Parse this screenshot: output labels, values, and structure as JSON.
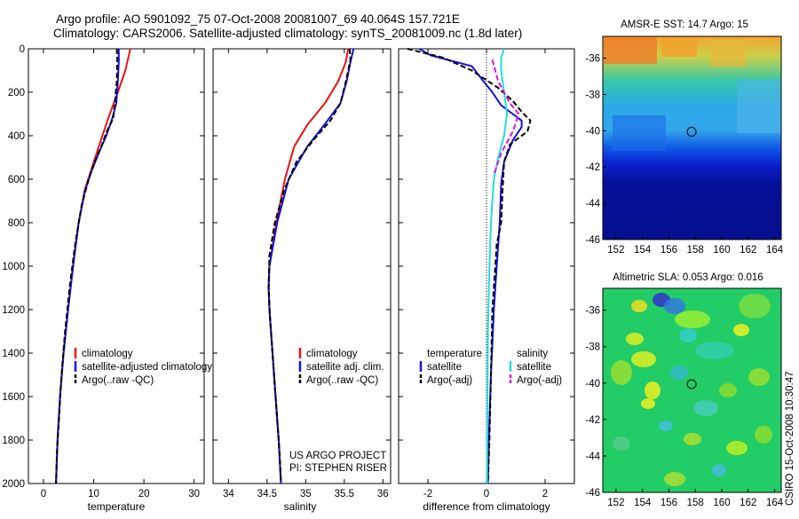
{
  "header": {
    "title_line1": "Argo profile: AO 5901092_75 07-Oct-2008 20081007_69 40.064S 157.721E",
    "title_line2": "Climatology: CARS2006. Satellite-adjusted climatology: synTS_20081009.nc (1.8d later)"
  },
  "colors": {
    "climatology": "#ee1111",
    "satellite": "#1111dd",
    "argo": "#000000",
    "satellite_salinity": "#22dddd",
    "argo_salinity": "#dd11dd"
  },
  "credits": {
    "line1": "US ARGO PROJECT",
    "line2": "PI: STEPHEN RISER"
  },
  "side_label": "CSIRO 15-Oct-2008 10:30:47",
  "chart_data": [
    {
      "id": "temperature",
      "type": "line",
      "xlabel": "temperature",
      "ylabel": "",
      "xlim": [
        -3,
        32
      ],
      "ylim": [
        2000,
        0
      ],
      "xticks": [
        0,
        10,
        20,
        30
      ],
      "yticks": [
        0,
        200,
        400,
        600,
        800,
        1000,
        1200,
        1400,
        1600,
        1800,
        2000
      ],
      "legend": {
        "placement": "lower-left",
        "entries": [
          "climatology",
          "satellite-adjusted climatology",
          "Argo(..raw -QC)"
        ]
      },
      "series": [
        {
          "name": "climatology",
          "color": "#ee1111",
          "dash": "",
          "points": [
            [
              17.3,
              0
            ],
            [
              17.0,
              30
            ],
            [
              16.3,
              100
            ],
            [
              14.8,
              200
            ],
            [
              12.9,
              320
            ],
            [
              11.0,
              450
            ],
            [
              9.6,
              550
            ],
            [
              8.2,
              650
            ],
            [
              7.0,
              800
            ],
            [
              5.9,
              1000
            ],
            [
              4.9,
              1200
            ],
            [
              4.0,
              1400
            ],
            [
              3.3,
              1600
            ],
            [
              2.8,
              1800
            ],
            [
              2.5,
              2000
            ]
          ]
        },
        {
          "name": "satellite-adjusted climatology",
          "color": "#1111dd",
          "dash": "",
          "points": [
            [
              15.0,
              0
            ],
            [
              15.0,
              60
            ],
            [
              14.8,
              150
            ],
            [
              14.5,
              250
            ],
            [
              13.7,
              320
            ],
            [
              12.5,
              400
            ],
            [
              11.0,
              480
            ],
            [
              9.6,
              560
            ],
            [
              8.3,
              650
            ],
            [
              7.0,
              800
            ],
            [
              5.9,
              1000
            ],
            [
              4.9,
              1200
            ],
            [
              4.0,
              1400
            ],
            [
              3.3,
              1600
            ],
            [
              2.8,
              1800
            ],
            [
              2.5,
              2000
            ]
          ]
        },
        {
          "name": "Argo(..raw -QC)",
          "color": "#000000",
          "dash": "6,3",
          "points": [
            [
              14.6,
              0
            ],
            [
              14.7,
              60
            ],
            [
              14.6,
              150
            ],
            [
              14.2,
              250
            ],
            [
              13.9,
              320
            ],
            [
              12.6,
              380
            ],
            [
              11.5,
              450
            ],
            [
              10.2,
              520
            ],
            [
              9.0,
              600
            ],
            [
              7.6,
              720
            ],
            [
              6.3,
              900
            ],
            [
              5.2,
              1100
            ],
            [
              4.3,
              1300
            ],
            [
              3.6,
              1500
            ],
            [
              3.1,
              1700
            ],
            [
              2.7,
              1850
            ],
            [
              2.5,
              2000
            ]
          ]
        }
      ]
    },
    {
      "id": "salinity",
      "type": "line",
      "xlabel": "salinity",
      "ylabel": "",
      "xlim": [
        33.8,
        36.1
      ],
      "ylim": [
        2000,
        0
      ],
      "xticks": [
        34,
        34.5,
        35,
        35.5,
        36
      ],
      "legend": {
        "placement": "lower-right",
        "entries": [
          "climatology",
          "satellite adj. clim.",
          "Argo(..raw -QC)"
        ]
      },
      "series": [
        {
          "name": "climatology",
          "color": "#ee1111",
          "dash": "",
          "points": [
            [
              35.55,
              0
            ],
            [
              35.52,
              60
            ],
            [
              35.42,
              150
            ],
            [
              35.25,
              250
            ],
            [
              35.02,
              350
            ],
            [
              34.85,
              450
            ],
            [
              34.73,
              600
            ],
            [
              34.62,
              800
            ],
            [
              34.53,
              1000
            ],
            [
              34.52,
              1100
            ],
            [
              34.53,
              1200
            ],
            [
              34.57,
              1400
            ],
            [
              34.61,
              1600
            ],
            [
              34.65,
              1800
            ],
            [
              34.68,
              2000
            ]
          ]
        },
        {
          "name": "satellite adj. clim.",
          "color": "#1111dd",
          "dash": "",
          "points": [
            [
              35.62,
              0
            ],
            [
              35.58,
              60
            ],
            [
              35.53,
              150
            ],
            [
              35.45,
              250
            ],
            [
              35.24,
              350
            ],
            [
              35.02,
              450
            ],
            [
              34.78,
              600
            ],
            [
              34.63,
              800
            ],
            [
              34.53,
              1000
            ],
            [
              34.52,
              1100
            ],
            [
              34.53,
              1200
            ],
            [
              34.57,
              1400
            ],
            [
              34.61,
              1600
            ],
            [
              34.65,
              1800
            ],
            [
              34.68,
              2000
            ]
          ]
        },
        {
          "name": "Argo(..raw -QC)",
          "color": "#000000",
          "dash": "6,3",
          "points": [
            [
              35.57,
              0
            ],
            [
              35.58,
              50
            ],
            [
              35.52,
              150
            ],
            [
              35.45,
              250
            ],
            [
              35.32,
              330
            ],
            [
              35.1,
              420
            ],
            [
              34.88,
              520
            ],
            [
              34.72,
              650
            ],
            [
              34.6,
              800
            ],
            [
              34.53,
              950
            ],
            [
              34.52,
              1100
            ],
            [
              34.54,
              1250
            ],
            [
              34.58,
              1450
            ],
            [
              34.62,
              1650
            ],
            [
              34.66,
              1850
            ],
            [
              34.68,
              2000
            ]
          ]
        }
      ]
    },
    {
      "id": "difference",
      "type": "line",
      "xlabel": "difference from climatology",
      "ylabel": "",
      "xlim": [
        -3,
        3
      ],
      "ylim": [
        2000,
        0
      ],
      "xticks": [
        -2,
        0,
        2
      ],
      "zero_line": true,
      "legend": {
        "placement": "lower-center",
        "groups": [
          {
            "heading": "temperature",
            "entries": [
              "satellite",
              "Argo(-adj)"
            ]
          },
          {
            "heading": "salinity",
            "entries": [
              "satellite",
              "Argo(-adj)"
            ]
          }
        ]
      },
      "series": [
        {
          "name": "temperature satellite",
          "color": "#1111dd",
          "dash": "",
          "points": [
            [
              -2.3,
              0
            ],
            [
              -1.9,
              30
            ],
            [
              -0.5,
              80
            ],
            [
              -0.1,
              150
            ],
            [
              0.2,
              200
            ],
            [
              0.5,
              260
            ],
            [
              0.9,
              300
            ],
            [
              1.2,
              330
            ],
            [
              1.2,
              360
            ],
            [
              0.9,
              420
            ],
            [
              0.6,
              520
            ],
            [
              0.5,
              620
            ],
            [
              0.45,
              800
            ],
            [
              0.35,
              1000
            ],
            [
              0.25,
              1200
            ],
            [
              0.15,
              1500
            ],
            [
              0.08,
              1800
            ],
            [
              0.05,
              2000
            ]
          ]
        },
        {
          "name": "temperature Argo(-adj)",
          "color": "#000000",
          "dash": "6,3",
          "points": [
            [
              -2.7,
              0
            ],
            [
              -1.5,
              40
            ],
            [
              -0.5,
              100
            ],
            [
              0.4,
              180
            ],
            [
              0.9,
              240
            ],
            [
              1.2,
              290
            ],
            [
              1.5,
              330
            ],
            [
              1.4,
              380
            ],
            [
              0.8,
              440
            ],
            [
              0.6,
              520
            ],
            [
              0.55,
              650
            ],
            [
              0.5,
              800
            ],
            [
              0.35,
              900
            ],
            [
              0.3,
              1000
            ],
            [
              0.2,
              1200
            ],
            [
              0.15,
              1500
            ],
            [
              0.1,
              1800
            ],
            [
              0.05,
              2000
            ]
          ]
        },
        {
          "name": "salinity satellite",
          "color": "#22dddd",
          "dash": "",
          "points": [
            [
              0.6,
              0
            ],
            [
              0.5,
              40
            ],
            [
              0.5,
              100
            ],
            [
              0.6,
              200
            ],
            [
              0.7,
              300
            ],
            [
              0.6,
              400
            ],
            [
              0.4,
              500
            ],
            [
              0.25,
              600
            ],
            [
              0.15,
              800
            ],
            [
              0.1,
              1000
            ],
            [
              0.05,
              1300
            ],
            [
              0.03,
              1600
            ],
            [
              0.02,
              2000
            ]
          ]
        },
        {
          "name": "salinity Argo(-adj)",
          "color": "#dd11dd",
          "dash": "6,3",
          "points": [
            [
              0.2,
              50
            ],
            [
              0.4,
              150
            ],
            [
              0.8,
              250
            ],
            [
              1.1,
              300
            ],
            [
              0.9,
              380
            ],
            [
              0.5,
              480
            ],
            [
              0.25,
              580
            ]
          ]
        }
      ]
    },
    {
      "id": "sst_map",
      "type": "heatmap",
      "title": "AMSR-E SST: 14.7 Argo: 15",
      "xlim": [
        151,
        164.5
      ],
      "ylim": [
        -46,
        -34.8
      ],
      "xticks": [
        152,
        154,
        156,
        158,
        160,
        162,
        164
      ],
      "yticks": [
        -36,
        -38,
        -40,
        -42,
        -44,
        -46
      ],
      "marker": {
        "lon": 157.72,
        "lat": -40.06
      }
    },
    {
      "id": "sla_map",
      "type": "heatmap",
      "title": "Altimetric SLA: 0.053 Argo: 0.016",
      "xlim": [
        151,
        164.5
      ],
      "ylim": [
        -46,
        -34.8
      ],
      "xticks": [
        152,
        154,
        156,
        158,
        160,
        162,
        164
      ],
      "yticks": [
        -36,
        -38,
        -40,
        -42,
        -44,
        -46
      ],
      "marker": {
        "lon": 157.72,
        "lat": -40.06
      }
    }
  ]
}
